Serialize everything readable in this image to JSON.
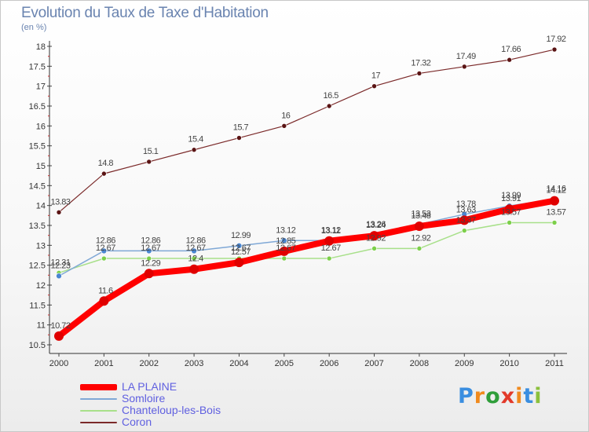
{
  "title": "Evolution du Taux de Taxe d'Habitation",
  "subtitle": "(en %)",
  "logo": {
    "text": "Proxiti",
    "letters": [
      "P",
      "r",
      "o",
      "x",
      "i",
      "t",
      "i"
    ],
    "colors": [
      "#3a8ee0",
      "#f08a1e",
      "#2f9e3a",
      "#e23a2a",
      "#f08a1e",
      "#3a8ee0",
      "#8bc03c"
    ]
  },
  "chart_data": {
    "type": "line",
    "x": [
      2000,
      2001,
      2002,
      2003,
      2004,
      2005,
      2006,
      2007,
      2008,
      2009,
      2010,
      2011
    ],
    "ylim": [
      10.5,
      18
    ],
    "yticks": [
      10.5,
      11,
      11.5,
      12,
      12.5,
      13,
      13.5,
      14,
      14.5,
      15,
      15.5,
      16,
      16.5,
      17,
      17.5,
      18
    ],
    "legend_position": "bottom-left",
    "series": [
      {
        "name": "Coron",
        "color": "#7b2a2a",
        "point_color": "#5a1414",
        "width": 1.2,
        "radius": 3,
        "values": [
          13.83,
          14.8,
          15.1,
          15.4,
          15.7,
          16,
          16.5,
          17,
          17.32,
          17.49,
          17.66,
          17.92
        ],
        "labels": [
          "13.83",
          "14.8",
          "15.1",
          "15.4",
          "15.7",
          "16",
          "16.5",
          "17",
          "17.32",
          "17.49",
          "17.66",
          "17.92"
        ]
      },
      {
        "name": "Chanteloup-les-Bois",
        "color": "#a8e08a",
        "point_color": "#7ccf4a",
        "width": 1.5,
        "radius": 3,
        "values": [
          12.31,
          12.67,
          12.67,
          12.67,
          12.67,
          12.67,
          12.67,
          12.92,
          12.92,
          13.37,
          13.57,
          13.57
        ],
        "labels": [
          "12.31",
          "12.67",
          "12.67",
          "12.67",
          "12.67",
          "12.67",
          "12.67",
          "12.92",
          "12.92",
          "13.37",
          "13.57",
          "13.57"
        ]
      },
      {
        "name": "Somloire",
        "color": "#7fa8d6",
        "point_color": "#4a86d0",
        "width": 1.5,
        "radius": 3.5,
        "values": [
          12.23,
          12.86,
          12.86,
          12.86,
          12.99,
          13.12,
          13.12,
          13.26,
          13.53,
          13.78,
          13.99,
          14.16
        ],
        "labels": [
          "12.23",
          "12.86",
          "12.86",
          "12.86",
          "12.99",
          "13.12",
          "13.12",
          "13.26",
          "13.53",
          "13.78",
          "13.99",
          "14.16"
        ]
      },
      {
        "name": "LA PLAINE",
        "color": "#ff0000",
        "point_color": "#e00000",
        "width": 8,
        "radius": 6,
        "values": [
          10.72,
          11.6,
          12.29,
          12.4,
          12.57,
          12.85,
          13.11,
          13.24,
          13.48,
          13.63,
          13.91,
          14.12
        ],
        "labels": [
          "10.72",
          "11.6",
          "12.29",
          "12.4",
          "12.57",
          "12.85",
          "13.11",
          "13.24",
          "13.48",
          "13.63",
          "13.91",
          "14.12"
        ]
      }
    ]
  },
  "legend": [
    {
      "label": "LA PLAINE",
      "color": "#ff0000"
    },
    {
      "label": "Somloire",
      "color": "#7fa8d6"
    },
    {
      "label": "Chanteloup-les-Bois",
      "color": "#a8e08a"
    },
    {
      "label": "Coron",
      "color": "#7b2a2a"
    }
  ]
}
